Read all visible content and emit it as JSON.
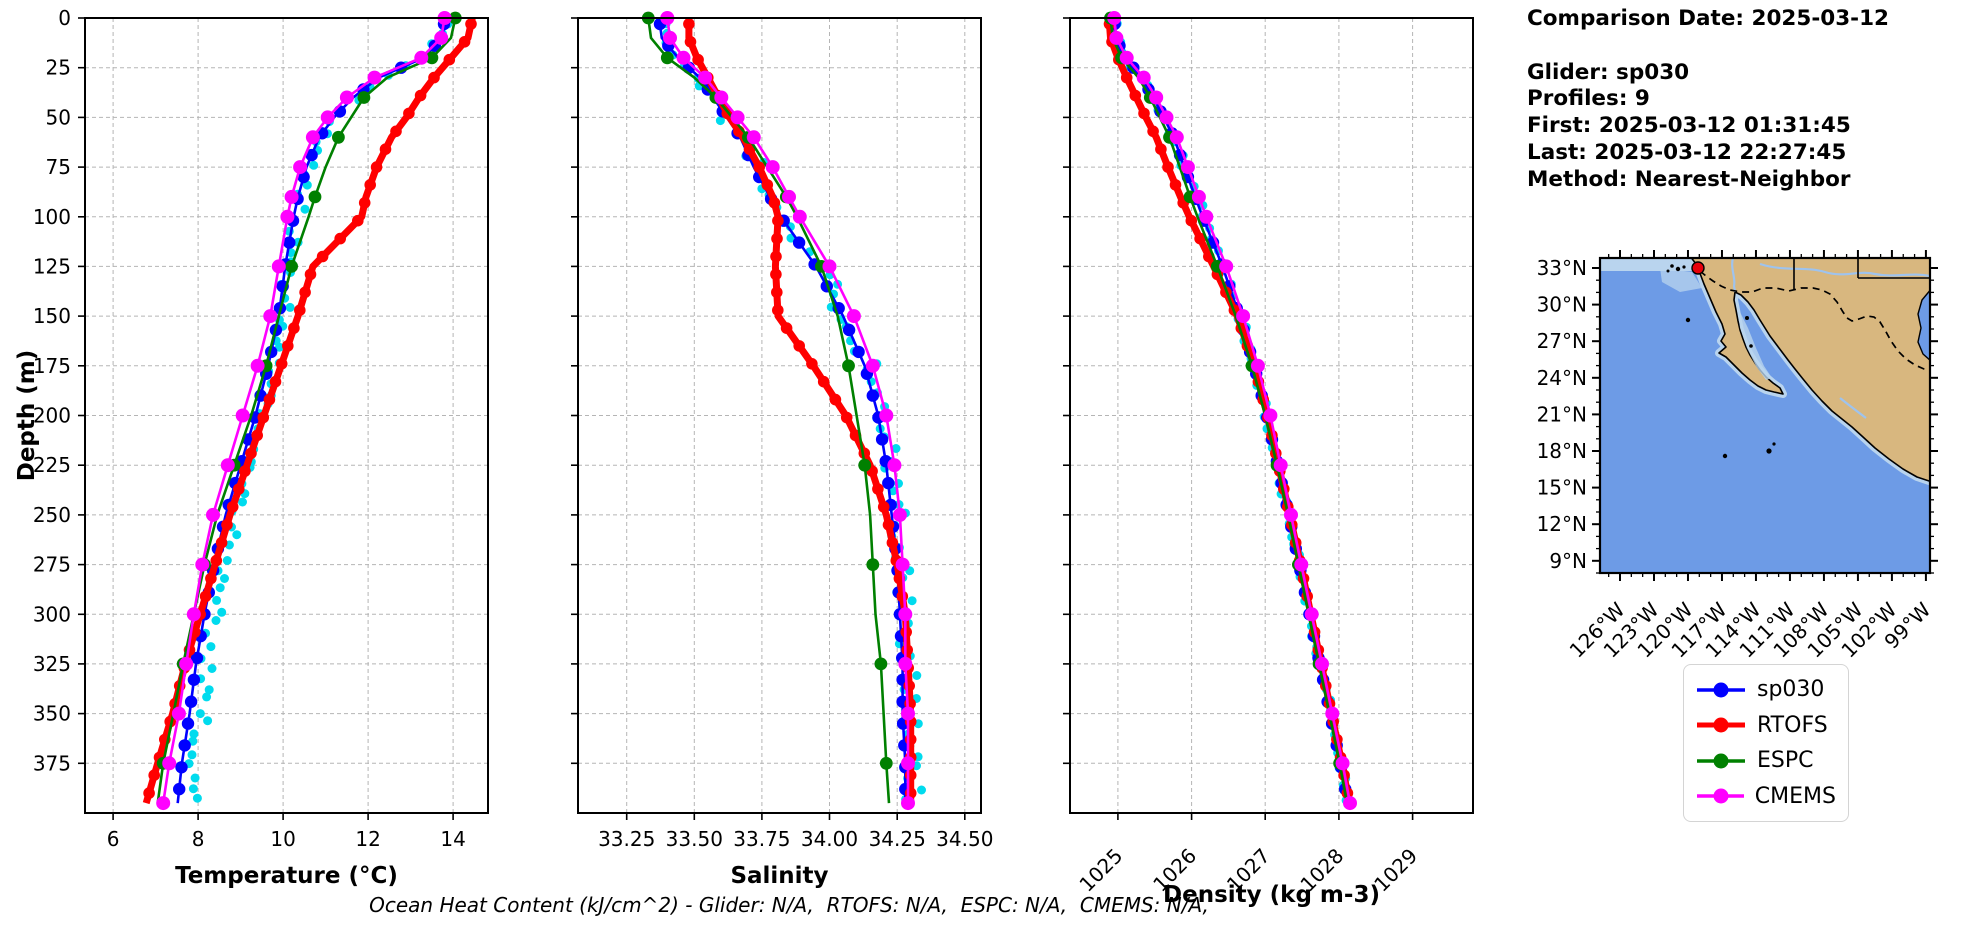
{
  "info_panel": {
    "comparison_date": "Comparison Date: 2025-03-12",
    "glider": "Glider: sp030",
    "profiles": "Profiles: 9",
    "first": "First: 2025-03-12 01:31:45",
    "last": "Last: 2025-03-12 22:27:45",
    "method": "Method: Nearest-Neighbor"
  },
  "legend": {
    "items": [
      {
        "label": "sp030",
        "color": "#0000ff",
        "sample_line_width": 3.5
      },
      {
        "label": "RTOFS",
        "color": "#ff0000",
        "sample_line_width": 5
      },
      {
        "label": "ESPC",
        "color": "#008000",
        "sample_line_width": 3.5
      },
      {
        "label": "CMEMS",
        "color": "#ff00ff",
        "sample_line_width": 3.5
      }
    ]
  },
  "map": {
    "lat_tick_labels": [
      "33°N",
      "30°N",
      "27°N",
      "24°N",
      "21°N",
      "18°N",
      "15°N",
      "12°N",
      "9°N"
    ],
    "lon_tick_labels": [
      "126°W",
      "123°W",
      "120°W",
      "117°W",
      "114°W",
      "111°W",
      "108°W",
      "105°W",
      "102°W",
      "99°W"
    ],
    "marker": {
      "name": "glider-location-dot",
      "color": "#e8000b"
    },
    "ocean_color": "#6d9be6",
    "land_color": "#d8b77f",
    "shelf_color": "#b9d4ee",
    "river_color": "#9ec3ee"
  },
  "footer": {
    "ohc_text": "Ocean Heat Content (kJ/cm^2) - Glider: N/A,  RTOFS: N/A,  ESPC: N/A,  CMEMS: N/A,"
  },
  "chart_data": {
    "type": "line",
    "description": "Glider-vs-model depth profile comparison, three panels sharing a depth axis",
    "ylabel": "Depth (m)",
    "ylim": [
      0,
      400
    ],
    "yticks": [
      0,
      25,
      50,
      75,
      100,
      125,
      150,
      175,
      200,
      225,
      250,
      275,
      300,
      325,
      350,
      375
    ],
    "ytick_labels": [
      "0",
      "25",
      "50",
      "75",
      "100",
      "125",
      "150",
      "175",
      "200",
      "225",
      "250",
      "275",
      "300",
      "325",
      "350",
      "375"
    ],
    "grid": true,
    "legend_entries": [
      "sp030",
      "RTOFS",
      "ESPC",
      "CMEMS"
    ],
    "depths": [
      0,
      10,
      20,
      30,
      40,
      50,
      60,
      75,
      90,
      100,
      125,
      150,
      175,
      200,
      225,
      250,
      275,
      300,
      325,
      350,
      375,
      395
    ],
    "series_order": [
      "sp030",
      "RTOFS",
      "ESPC",
      "CMEMS"
    ],
    "series_style": {
      "sp030": {
        "color": "#0000ff",
        "line_width": 2.6,
        "marker_radius": 6.2,
        "dense_markers": true,
        "marker_step": 11
      },
      "RTOFS": {
        "color": "#ff0000",
        "line_width": 7.0,
        "marker_radius": 5.8,
        "dense_markers": true,
        "marker_step": 9
      },
      "ESPC": {
        "color": "#008000",
        "line_width": 2.6,
        "marker_radius": 6.4,
        "dense_markers": false,
        "marker_every": 2
      },
      "CMEMS": {
        "color": "#ff00ff",
        "line_width": 2.6,
        "marker_radius": 7.0,
        "dense_markers": false,
        "marker_every": 1
      }
    },
    "raw_scatter": {
      "label": "glider raw observations",
      "color": "#00dbee",
      "follows": "sp030",
      "dot_radius": 4.5,
      "depth_step": 5.5,
      "jitter": {
        "temperature": 0.17,
        "salinity": 0.038,
        "density": 0.05
      },
      "right_drift_per_meter": {
        "temperature": 0.0008,
        "salinity": 9e-05,
        "density": 5e-05
      }
    },
    "panels": [
      {
        "id": "temperature",
        "xlabel": "Temperature (°C)",
        "xlim": [
          5.34,
          14.82
        ],
        "xticks": [
          6,
          8,
          10,
          12,
          14
        ],
        "xtick_labels": [
          "6",
          "8",
          "10",
          "12",
          "14"
        ],
        "rotate_xtick_labels": false,
        "series": {
          "sp030": [
            13.8,
            13.75,
            13.3,
            12.25,
            11.65,
            11.2,
            10.85,
            10.55,
            10.35,
            10.25,
            10.05,
            9.9,
            9.65,
            9.35,
            9.0,
            8.65,
            8.38,
            8.15,
            7.95,
            7.8,
            7.62,
            7.52
          ],
          "RTOFS": [
            14.45,
            14.35,
            13.95,
            13.55,
            13.2,
            12.9,
            12.55,
            12.2,
            11.95,
            11.85,
            10.7,
            10.35,
            9.95,
            9.55,
            9.15,
            8.75,
            8.4,
            8.05,
            7.7,
            7.4,
            7.05,
            6.78
          ],
          "ESPC": [
            14.05,
            13.95,
            13.5,
            12.45,
            11.9,
            11.6,
            11.3,
            11.0,
            10.75,
            10.6,
            10.2,
            9.9,
            9.6,
            9.25,
            8.85,
            8.45,
            8.15,
            7.9,
            7.65,
            7.42,
            7.18,
            7.05
          ],
          "CMEMS": [
            13.8,
            13.72,
            13.25,
            12.15,
            11.5,
            11.05,
            10.7,
            10.4,
            10.2,
            10.1,
            9.9,
            9.7,
            9.4,
            9.05,
            8.7,
            8.35,
            8.1,
            7.9,
            7.72,
            7.55,
            7.32,
            7.18
          ]
        }
      },
      {
        "id": "salinity",
        "xlabel": "Salinity",
        "xlim": [
          33.07,
          34.56
        ],
        "xticks": [
          33.25,
          33.5,
          33.75,
          34.0,
          34.25,
          34.5
        ],
        "xtick_labels": [
          "33.25",
          "33.50",
          "33.75",
          "34.00",
          "34.25",
          "34.50"
        ],
        "rotate_xtick_labels": false,
        "series": {
          "sp030": [
            33.37,
            33.38,
            33.44,
            33.52,
            33.57,
            33.62,
            33.67,
            33.72,
            33.78,
            33.82,
            33.95,
            34.05,
            34.13,
            34.18,
            34.21,
            34.23,
            34.25,
            34.26,
            34.27,
            34.27,
            34.28,
            34.28
          ],
          "RTOFS": [
            33.48,
            33.48,
            33.51,
            33.55,
            33.59,
            33.63,
            33.68,
            33.74,
            33.79,
            33.81,
            33.8,
            33.81,
            33.94,
            34.06,
            34.15,
            34.21,
            34.25,
            34.28,
            34.29,
            34.3,
            34.3,
            34.3
          ],
          "ESPC": [
            33.33,
            33.34,
            33.4,
            33.5,
            33.58,
            33.64,
            33.7,
            33.77,
            33.84,
            33.88,
            33.97,
            34.03,
            34.07,
            34.1,
            34.13,
            34.15,
            34.16,
            34.17,
            34.19,
            34.2,
            34.21,
            34.22
          ],
          "CMEMS": [
            33.4,
            33.41,
            33.46,
            33.54,
            33.6,
            33.66,
            33.72,
            33.79,
            33.85,
            33.89,
            34.0,
            34.09,
            34.16,
            34.21,
            34.24,
            34.26,
            34.27,
            34.28,
            34.28,
            34.29,
            34.29,
            34.29
          ]
        }
      },
      {
        "id": "density",
        "xlabel": "Density (kg m-3)",
        "xlim": [
          1024.35,
          1029.82
        ],
        "xticks": [
          1025,
          1026,
          1027,
          1028,
          1029
        ],
        "xtick_labels": [
          "1025",
          "1026",
          "1027",
          "1028",
          "1029"
        ],
        "rotate_xtick_labels": true,
        "series": {
          "sp030": [
            1024.95,
            1024.97,
            1025.1,
            1025.32,
            1025.48,
            1025.62,
            1025.76,
            1025.9,
            1026.05,
            1026.15,
            1026.42,
            1026.65,
            1026.85,
            1027.02,
            1027.17,
            1027.32,
            1027.46,
            1027.6,
            1027.74,
            1027.88,
            1028.02,
            1028.12
          ],
          "RTOFS": [
            1024.88,
            1024.9,
            1025.0,
            1025.12,
            1025.25,
            1025.38,
            1025.52,
            1025.68,
            1025.85,
            1025.97,
            1026.3,
            1026.62,
            1026.85,
            1027.03,
            1027.18,
            1027.33,
            1027.48,
            1027.62,
            1027.76,
            1027.9,
            1028.04,
            1028.14
          ],
          "ESPC": [
            1024.9,
            1024.93,
            1025.05,
            1025.28,
            1025.44,
            1025.57,
            1025.7,
            1025.84,
            1025.98,
            1026.08,
            1026.35,
            1026.6,
            1026.82,
            1027.0,
            1027.16,
            1027.31,
            1027.45,
            1027.59,
            1027.73,
            1027.87,
            1028.01,
            1028.11
          ],
          "CMEMS": [
            1024.95,
            1024.98,
            1025.12,
            1025.35,
            1025.52,
            1025.66,
            1025.8,
            1025.95,
            1026.1,
            1026.2,
            1026.47,
            1026.7,
            1026.9,
            1027.07,
            1027.21,
            1027.35,
            1027.49,
            1027.63,
            1027.77,
            1027.91,
            1028.05,
            1028.15
          ]
        }
      }
    ]
  }
}
